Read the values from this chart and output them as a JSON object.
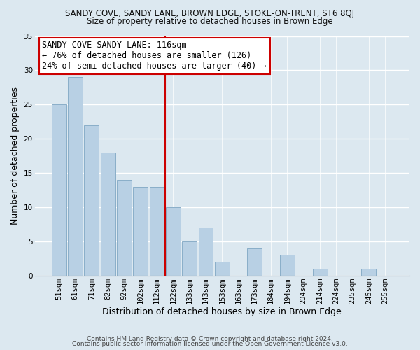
{
  "title": "SANDY COVE, SANDY LANE, BROWN EDGE, STOKE-ON-TRENT, ST6 8QJ",
  "subtitle": "Size of property relative to detached houses in Brown Edge",
  "xlabel": "Distribution of detached houses by size in Brown Edge",
  "ylabel": "Number of detached properties",
  "footer_line1": "Contains HM Land Registry data © Crown copyright and database right 2024.",
  "footer_line2": "Contains public sector information licensed under the Open Government Licence v3.0.",
  "bar_labels": [
    "51sqm",
    "61sqm",
    "71sqm",
    "82sqm",
    "92sqm",
    "102sqm",
    "112sqm",
    "122sqm",
    "133sqm",
    "143sqm",
    "153sqm",
    "163sqm",
    "173sqm",
    "184sqm",
    "194sqm",
    "204sqm",
    "214sqm",
    "224sqm",
    "235sqm",
    "245sqm",
    "255sqm"
  ],
  "bar_values": [
    25,
    29,
    22,
    18,
    14,
    13,
    13,
    10,
    5,
    7,
    2,
    0,
    4,
    0,
    3,
    0,
    1,
    0,
    0,
    1,
    0
  ],
  "bar_color": "#b8d0e4",
  "bar_edge_color": "#8aaec8",
  "ylim": [
    0,
    35
  ],
  "yticks": [
    0,
    5,
    10,
    15,
    20,
    25,
    30,
    35
  ],
  "vline_x_index": 6.5,
  "vline_color": "#cc0000",
  "annotation_title": "SANDY COVE SANDY LANE: 116sqm",
  "annotation_line1": "← 76% of detached houses are smaller (126)",
  "annotation_line2": "24% of semi-detached houses are larger (40) →",
  "annotation_box_facecolor": "#ffffff",
  "annotation_box_edgecolor": "#cc0000",
  "background_color": "#dce8f0",
  "plot_bg_color": "#dce8f0",
  "grid_color": "#ffffff",
  "title_fontsize": 8.5,
  "subtitle_fontsize": 8.5,
  "annotation_fontsize": 8.5,
  "axis_label_fontsize": 9,
  "tick_fontsize": 7.5,
  "footer_fontsize": 6.5
}
